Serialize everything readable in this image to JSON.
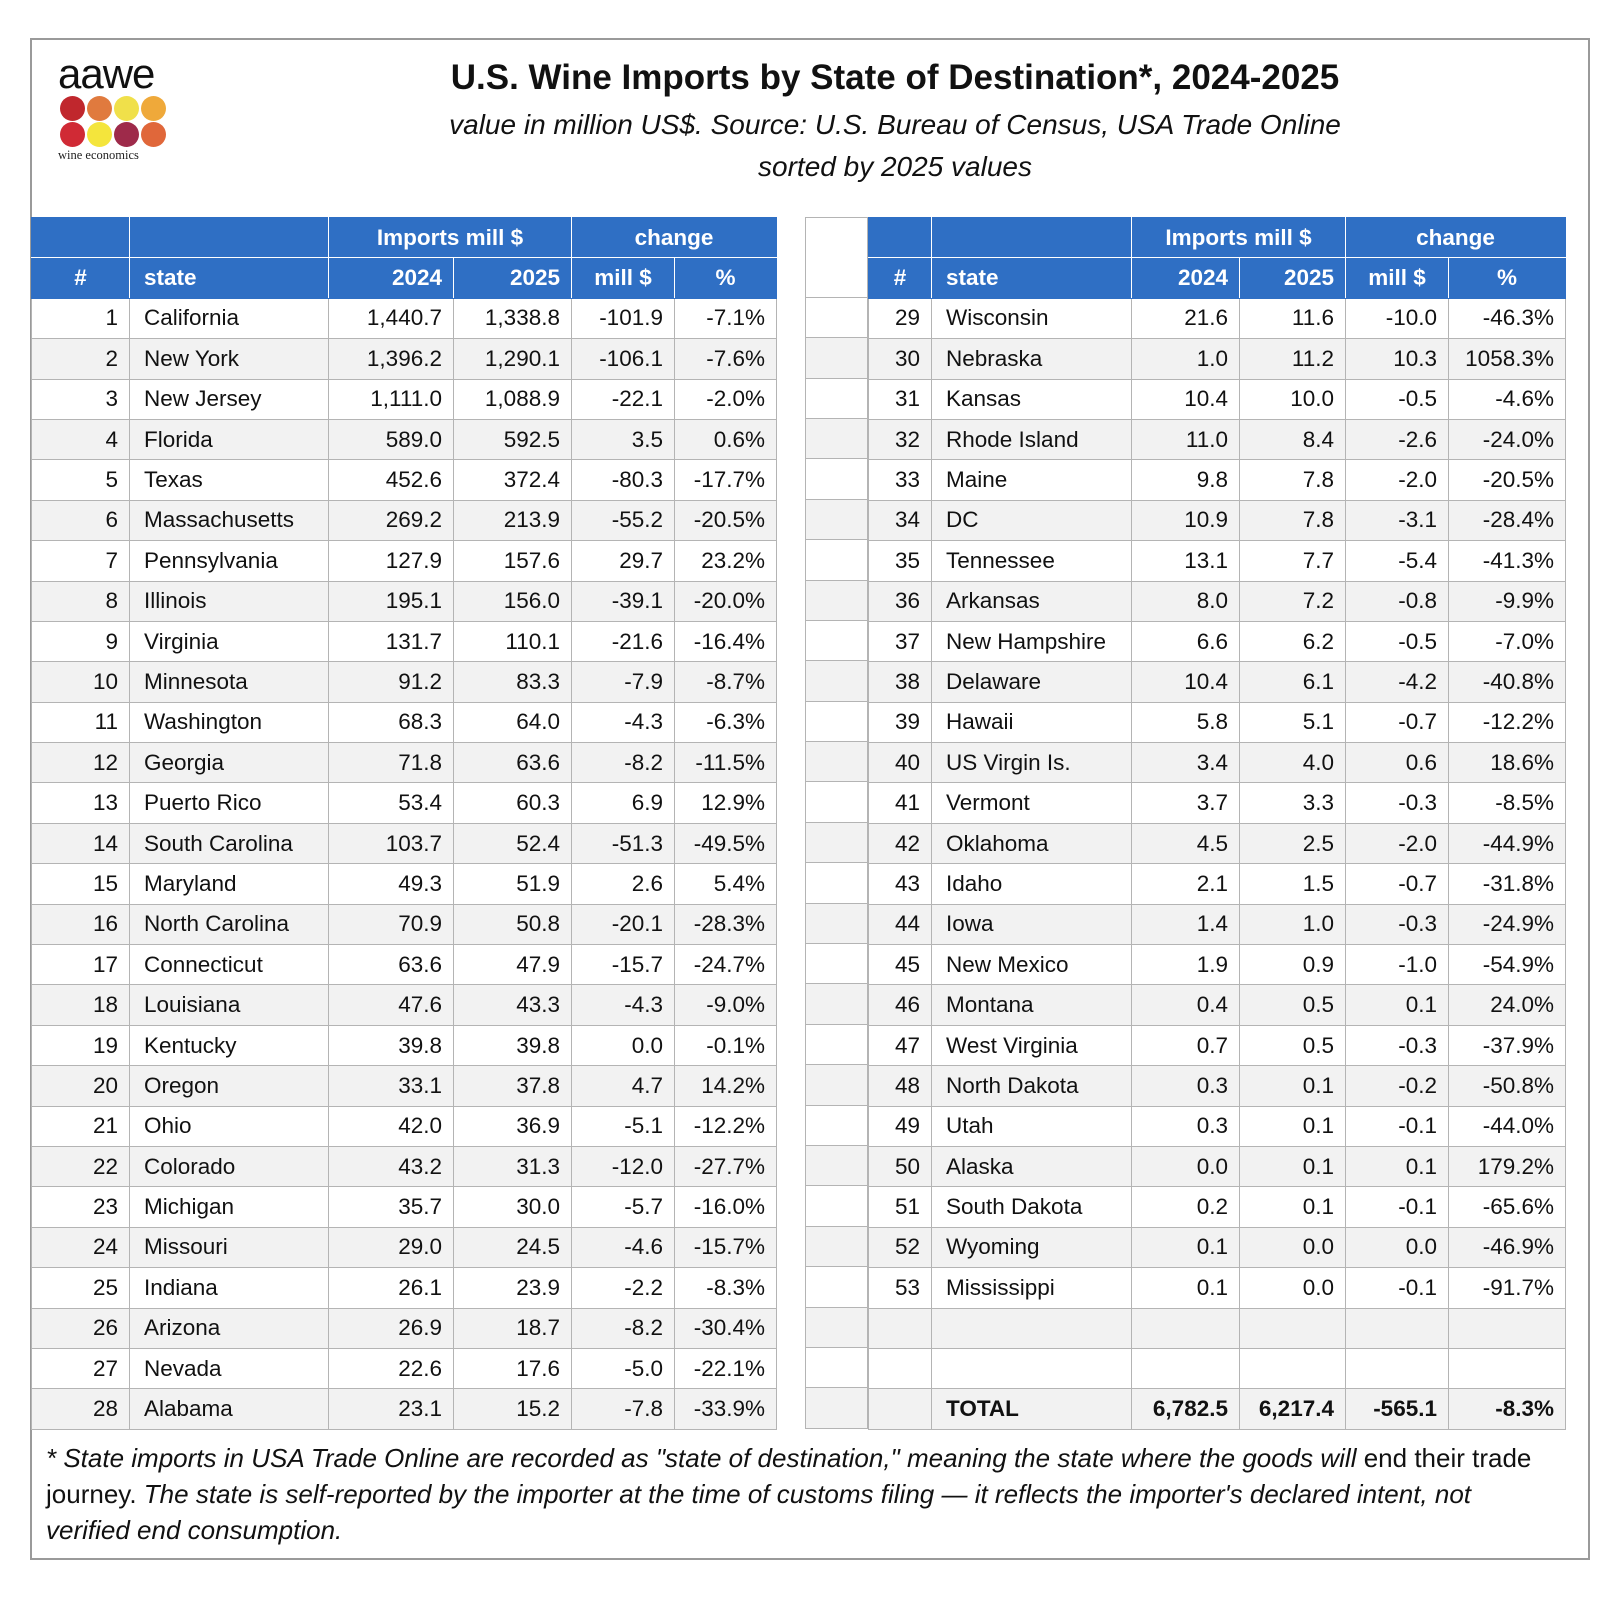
{
  "logo": {
    "word": "aawe",
    "tagline": "wine economics",
    "dot_colors": [
      "#c0272d",
      "#e07a3e",
      "#f0e04a",
      "#efa93a",
      "#d02a35",
      "#f4e53c",
      "#9e2a4a",
      "#e0673a"
    ]
  },
  "header": {
    "title": "U.S. Wine Imports by State of Destination*, 2024-2025",
    "subtitle_line1": "value in million US$. Source: U.S. Bureau of Census, USA Trade Online",
    "subtitle_line2": "sorted by 2025 values"
  },
  "columns": {
    "group_imports": "Imports mill $",
    "group_change": "change",
    "rank": "#",
    "state": "state",
    "y2024": "2024",
    "y2025": "2025",
    "mill": "mill $",
    "pct": "%"
  },
  "left_rows": [
    {
      "rank": "1",
      "state": "California",
      "v2024": "1,440.7",
      "v2025": "1,338.8",
      "mill": "-101.9",
      "pct": "-7.1%"
    },
    {
      "rank": "2",
      "state": "New York",
      "v2024": "1,396.2",
      "v2025": "1,290.1",
      "mill": "-106.1",
      "pct": "-7.6%"
    },
    {
      "rank": "3",
      "state": "New Jersey",
      "v2024": "1,111.0",
      "v2025": "1,088.9",
      "mill": "-22.1",
      "pct": "-2.0%"
    },
    {
      "rank": "4",
      "state": "Florida",
      "v2024": "589.0",
      "v2025": "592.5",
      "mill": "3.5",
      "pct": "0.6%"
    },
    {
      "rank": "5",
      "state": "Texas",
      "v2024": "452.6",
      "v2025": "372.4",
      "mill": "-80.3",
      "pct": "-17.7%"
    },
    {
      "rank": "6",
      "state": "Massachusetts",
      "v2024": "269.2",
      "v2025": "213.9",
      "mill": "-55.2",
      "pct": "-20.5%"
    },
    {
      "rank": "7",
      "state": "Pennsylvania",
      "v2024": "127.9",
      "v2025": "157.6",
      "mill": "29.7",
      "pct": "23.2%"
    },
    {
      "rank": "8",
      "state": "Illinois",
      "v2024": "195.1",
      "v2025": "156.0",
      "mill": "-39.1",
      "pct": "-20.0%"
    },
    {
      "rank": "9",
      "state": "Virginia",
      "v2024": "131.7",
      "v2025": "110.1",
      "mill": "-21.6",
      "pct": "-16.4%"
    },
    {
      "rank": "10",
      "state": "Minnesota",
      "v2024": "91.2",
      "v2025": "83.3",
      "mill": "-7.9",
      "pct": "-8.7%"
    },
    {
      "rank": "11",
      "state": "Washington",
      "v2024": "68.3",
      "v2025": "64.0",
      "mill": "-4.3",
      "pct": "-6.3%"
    },
    {
      "rank": "12",
      "state": "Georgia",
      "v2024": "71.8",
      "v2025": "63.6",
      "mill": "-8.2",
      "pct": "-11.5%"
    },
    {
      "rank": "13",
      "state": "Puerto Rico",
      "v2024": "53.4",
      "v2025": "60.3",
      "mill": "6.9",
      "pct": "12.9%"
    },
    {
      "rank": "14",
      "state": "South Carolina",
      "v2024": "103.7",
      "v2025": "52.4",
      "mill": "-51.3",
      "pct": "-49.5%"
    },
    {
      "rank": "15",
      "state": "Maryland",
      "v2024": "49.3",
      "v2025": "51.9",
      "mill": "2.6",
      "pct": "5.4%"
    },
    {
      "rank": "16",
      "state": "North Carolina",
      "v2024": "70.9",
      "v2025": "50.8",
      "mill": "-20.1",
      "pct": "-28.3%"
    },
    {
      "rank": "17",
      "state": "Connecticut",
      "v2024": "63.6",
      "v2025": "47.9",
      "mill": "-15.7",
      "pct": "-24.7%"
    },
    {
      "rank": "18",
      "state": "Louisiana",
      "v2024": "47.6",
      "v2025": "43.3",
      "mill": "-4.3",
      "pct": "-9.0%"
    },
    {
      "rank": "19",
      "state": "Kentucky",
      "v2024": "39.8",
      "v2025": "39.8",
      "mill": "0.0",
      "pct": "-0.1%"
    },
    {
      "rank": "20",
      "state": "Oregon",
      "v2024": "33.1",
      "v2025": "37.8",
      "mill": "4.7",
      "pct": "14.2%"
    },
    {
      "rank": "21",
      "state": "Ohio",
      "v2024": "42.0",
      "v2025": "36.9",
      "mill": "-5.1",
      "pct": "-12.2%"
    },
    {
      "rank": "22",
      "state": "Colorado",
      "v2024": "43.2",
      "v2025": "31.3",
      "mill": "-12.0",
      "pct": "-27.7%"
    },
    {
      "rank": "23",
      "state": "Michigan",
      "v2024": "35.7",
      "v2025": "30.0",
      "mill": "-5.7",
      "pct": "-16.0%"
    },
    {
      "rank": "24",
      "state": "Missouri",
      "v2024": "29.0",
      "v2025": "24.5",
      "mill": "-4.6",
      "pct": "-15.7%"
    },
    {
      "rank": "25",
      "state": "Indiana",
      "v2024": "26.1",
      "v2025": "23.9",
      "mill": "-2.2",
      "pct": "-8.3%"
    },
    {
      "rank": "26",
      "state": "Arizona",
      "v2024": "26.9",
      "v2025": "18.7",
      "mill": "-8.2",
      "pct": "-30.4%"
    },
    {
      "rank": "27",
      "state": "Nevada",
      "v2024": "22.6",
      "v2025": "17.6",
      "mill": "-5.0",
      "pct": "-22.1%"
    },
    {
      "rank": "28",
      "state": "Alabama",
      "v2024": "23.1",
      "v2025": "15.2",
      "mill": "-7.8",
      "pct": "-33.9%"
    }
  ],
  "right_rows": [
    {
      "rank": "29",
      "state": "Wisconsin",
      "v2024": "21.6",
      "v2025": "11.6",
      "mill": "-10.0",
      "pct": "-46.3%"
    },
    {
      "rank": "30",
      "state": "Nebraska",
      "v2024": "1.0",
      "v2025": "11.2",
      "mill": "10.3",
      "pct": "1058.3%"
    },
    {
      "rank": "31",
      "state": "Kansas",
      "v2024": "10.4",
      "v2025": "10.0",
      "mill": "-0.5",
      "pct": "-4.6%"
    },
    {
      "rank": "32",
      "state": "Rhode Island",
      "v2024": "11.0",
      "v2025": "8.4",
      "mill": "-2.6",
      "pct": "-24.0%"
    },
    {
      "rank": "33",
      "state": "Maine",
      "v2024": "9.8",
      "v2025": "7.8",
      "mill": "-2.0",
      "pct": "-20.5%"
    },
    {
      "rank": "34",
      "state": "DC",
      "v2024": "10.9",
      "v2025": "7.8",
      "mill": "-3.1",
      "pct": "-28.4%"
    },
    {
      "rank": "35",
      "state": "Tennessee",
      "v2024": "13.1",
      "v2025": "7.7",
      "mill": "-5.4",
      "pct": "-41.3%"
    },
    {
      "rank": "36",
      "state": "Arkansas",
      "v2024": "8.0",
      "v2025": "7.2",
      "mill": "-0.8",
      "pct": "-9.9%"
    },
    {
      "rank": "37",
      "state": "New Hampshire",
      "v2024": "6.6",
      "v2025": "6.2",
      "mill": "-0.5",
      "pct": "-7.0%"
    },
    {
      "rank": "38",
      "state": "Delaware",
      "v2024": "10.4",
      "v2025": "6.1",
      "mill": "-4.2",
      "pct": "-40.8%"
    },
    {
      "rank": "39",
      "state": "Hawaii",
      "v2024": "5.8",
      "v2025": "5.1",
      "mill": "-0.7",
      "pct": "-12.2%"
    },
    {
      "rank": "40",
      "state": "US Virgin Is.",
      "v2024": "3.4",
      "v2025": "4.0",
      "mill": "0.6",
      "pct": "18.6%"
    },
    {
      "rank": "41",
      "state": "Vermont",
      "v2024": "3.7",
      "v2025": "3.3",
      "mill": "-0.3",
      "pct": "-8.5%"
    },
    {
      "rank": "42",
      "state": "Oklahoma",
      "v2024": "4.5",
      "v2025": "2.5",
      "mill": "-2.0",
      "pct": "-44.9%"
    },
    {
      "rank": "43",
      "state": "Idaho",
      "v2024": "2.1",
      "v2025": "1.5",
      "mill": "-0.7",
      "pct": "-31.8%"
    },
    {
      "rank": "44",
      "state": "Iowa",
      "v2024": "1.4",
      "v2025": "1.0",
      "mill": "-0.3",
      "pct": "-24.9%"
    },
    {
      "rank": "45",
      "state": "New Mexico",
      "v2024": "1.9",
      "v2025": "0.9",
      "mill": "-1.0",
      "pct": "-54.9%"
    },
    {
      "rank": "46",
      "state": "Montana",
      "v2024": "0.4",
      "v2025": "0.5",
      "mill": "0.1",
      "pct": "24.0%"
    },
    {
      "rank": "47",
      "state": "West Virginia",
      "v2024": "0.7",
      "v2025": "0.5",
      "mill": "-0.3",
      "pct": "-37.9%"
    },
    {
      "rank": "48",
      "state": "North Dakota",
      "v2024": "0.3",
      "v2025": "0.1",
      "mill": "-0.2",
      "pct": "-50.8%"
    },
    {
      "rank": "49",
      "state": "Utah",
      "v2024": "0.3",
      "v2025": "0.1",
      "mill": "-0.1",
      "pct": "-44.0%"
    },
    {
      "rank": "50",
      "state": "Alaska",
      "v2024": "0.0",
      "v2025": "0.1",
      "mill": "0.1",
      "pct": "179.2%"
    },
    {
      "rank": "51",
      "state": "South Dakota",
      "v2024": "0.2",
      "v2025": "0.1",
      "mill": "-0.1",
      "pct": "-65.6%"
    },
    {
      "rank": "52",
      "state": "Wyoming",
      "v2024": "0.1",
      "v2025": "0.0",
      "mill": "0.0",
      "pct": "-46.9%"
    },
    {
      "rank": "53",
      "state": "Mississippi",
      "v2024": "0.1",
      "v2025": "0.0",
      "mill": "-0.1",
      "pct": "-91.7%"
    }
  ],
  "total": {
    "label": "TOTAL",
    "v2024": "6,782.5",
    "v2025": "6,217.4",
    "mill": "-565.1",
    "pct": "-8.3%"
  },
  "footnote": {
    "italic_part": "* State imports in USA Trade Online are recorded as \"state of destination,\" meaning the state where the goods will",
    "normal_part": " end their trade journey.",
    "italic_part2": " The state is self-reported by the importer at the time of customs filing — it reflects the importer's declared intent, not verified end consumption."
  }
}
